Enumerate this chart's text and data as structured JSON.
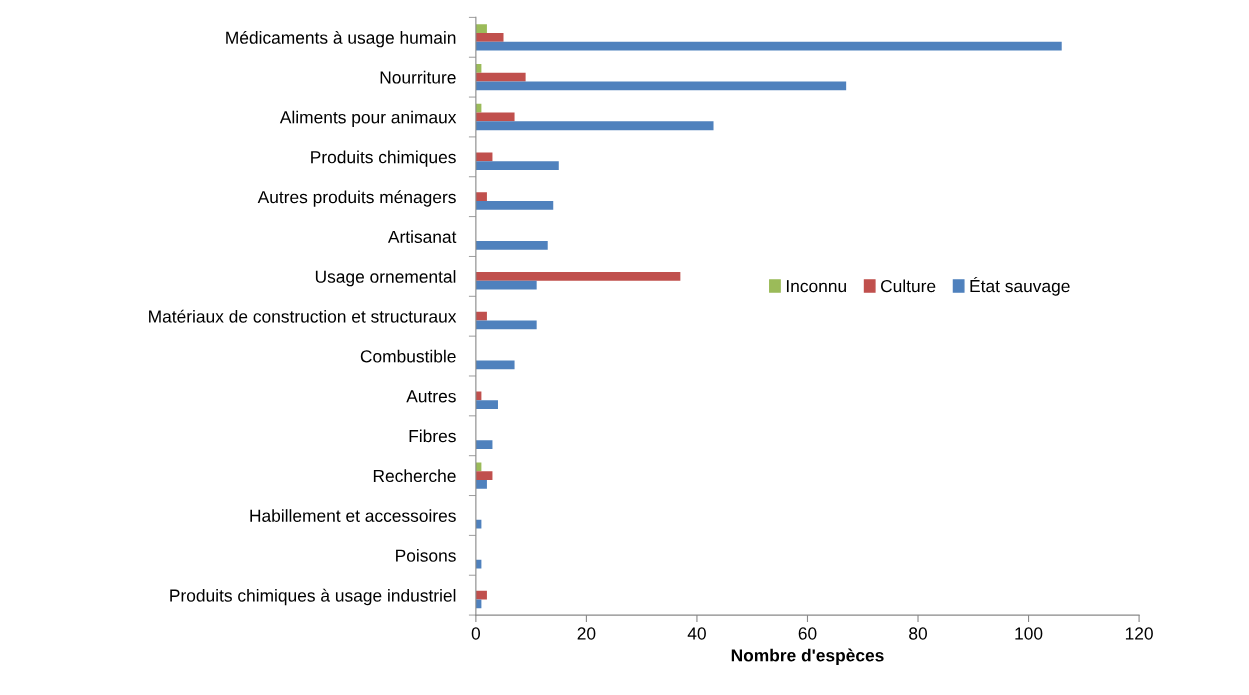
{
  "chart_data": {
    "type": "bar",
    "orientation": "horizontal",
    "xlabel": "Nombre d'espèces",
    "categories": [
      "Médicaments à usage humain",
      "Nourriture",
      "Aliments pour animaux",
      "Produits chimiques",
      "Autres produits ménagers",
      "Artisanat",
      "Usage ornemental",
      "Matériaux de construction et structuraux",
      "Combustible",
      "Autres",
      "Fibres",
      "Recherche",
      "Habillement et accessoires",
      "Poisons",
      "Produits chimiques à usage industriel"
    ],
    "series": [
      {
        "name": "Inconnu",
        "color": "#9bbb59",
        "values": [
          2,
          1,
          1,
          0,
          0,
          0,
          0,
          0,
          0,
          0,
          0,
          1,
          0,
          0,
          0
        ]
      },
      {
        "name": "Culture",
        "color": "#c0504d",
        "values": [
          5,
          9,
          7,
          3,
          2,
          0,
          37,
          2,
          0,
          1,
          0,
          3,
          0,
          0,
          2
        ]
      },
      {
        "name": "État sauvage",
        "color": "#4f81bd",
        "values": [
          106,
          67,
          43,
          15,
          14,
          13,
          11,
          11,
          7,
          4,
          3,
          2,
          1,
          1,
          1
        ]
      }
    ],
    "xlim": [
      0,
      120
    ],
    "xticks": [
      0,
      20,
      40,
      60,
      80,
      100,
      120
    ],
    "grid": false,
    "legend": "right"
  }
}
